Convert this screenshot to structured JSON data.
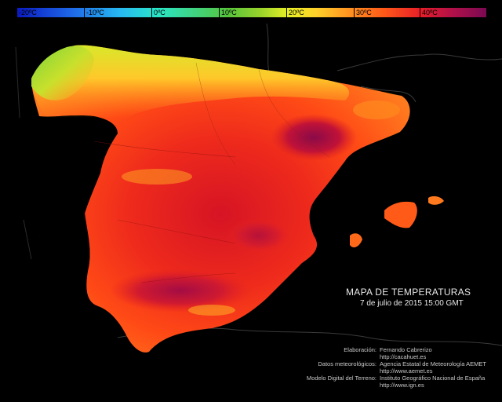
{
  "map": {
    "title": "MAPA DE TEMPERATURAS",
    "subtitle": "7 de julio de 2015 15:00 GMT"
  },
  "legend": {
    "labels": [
      "-20ºC",
      "-10ºC",
      "0ºC",
      "10ºC",
      "20ºC",
      "30ºC",
      "40ºC"
    ],
    "gradient_colors": [
      "#0a1ac0",
      "#27b8f0",
      "#3dd68a",
      "#9ad42a",
      "#ffd02a",
      "#ff5a18",
      "#7a0a52"
    ]
  },
  "credits": [
    {
      "key": "Elaboración:",
      "lines": [
        "Fernando Cabrerizo",
        "http://cacahuet.es"
      ]
    },
    {
      "key": "Datos meteorológicos:",
      "lines": [
        "Agencia Estatal de Meteorología AEMET",
        "http://www.aemet.es"
      ]
    },
    {
      "key": "Modelo Digital del Terreno:",
      "lines": [
        "Instituto Geográfico Nacional de España",
        "http://www.ign.es"
      ]
    }
  ]
}
